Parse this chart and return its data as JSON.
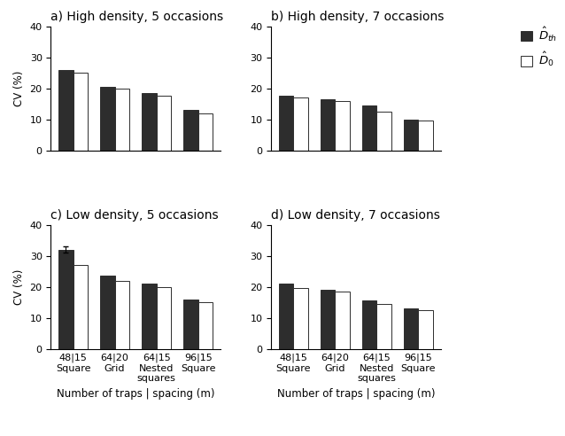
{
  "panels": [
    {
      "label": "a) High density, 5 occasions",
      "D_th": [
        26.0,
        20.5,
        18.5,
        13.0
      ],
      "D_0": [
        25.0,
        20.0,
        17.5,
        12.0
      ]
    },
    {
      "label": "b) High density, 7 occasions",
      "D_th": [
        17.5,
        16.5,
        14.5,
        10.0
      ],
      "D_0": [
        17.0,
        16.0,
        12.5,
        9.5
      ]
    },
    {
      "label": "c) Low density, 5 occasions",
      "D_th": [
        32.0,
        23.5,
        21.0,
        16.0
      ],
      "D_0": [
        27.0,
        22.0,
        20.0,
        15.0
      ]
    },
    {
      "label": "d) Low density, 7 occasions",
      "D_th": [
        21.0,
        19.0,
        15.5,
        13.0
      ],
      "D_0": [
        19.5,
        18.5,
        14.5,
        12.5
      ]
    }
  ],
  "categories_line1": [
    "48|15",
    "64|20",
    "64|15",
    "96|15"
  ],
  "categories_line2": [
    "Square",
    "Grid",
    "Nested\nsquares",
    "Square"
  ],
  "ylabel": "CV (%)",
  "xlabel": "Number of traps | spacing (m)",
  "ylim": [
    0,
    40
  ],
  "yticks": [
    0,
    10,
    20,
    30,
    40
  ],
  "bar_color_th": "#2d2d2d",
  "bar_color_0": "#ffffff",
  "bar_edgecolor": "#2d2d2d",
  "bar_width": 0.35,
  "title_fontsize": 10,
  "tick_fontsize": 8,
  "label_fontsize": 8.5,
  "errorbar_value": 1.0
}
